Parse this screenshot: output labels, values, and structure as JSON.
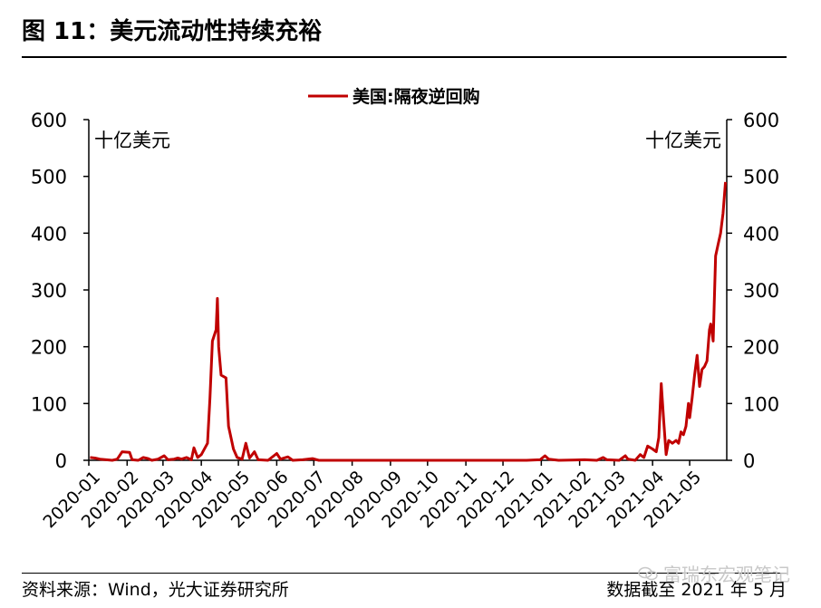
{
  "figure": {
    "title": "图 11：美元流动性持续充裕",
    "source": "资料来源：Wind，光大证券研究所",
    "cutoff": "数据截至 2021 年 5 月",
    "watermark": "富瑞东宏观笔记"
  },
  "chart_data": {
    "type": "line",
    "title": "",
    "unit_left": "十亿美元",
    "unit_right": "十亿美元",
    "ylim": [
      0,
      600
    ],
    "yticks": [
      "0",
      "100",
      "200",
      "300",
      "400",
      "500",
      "600"
    ],
    "legend": {
      "placement": "top-center"
    },
    "x_ticks": [
      "2020-01",
      "2020-02",
      "2020-03",
      "2020-04",
      "2020-05",
      "2020-06",
      "2020-07",
      "2020-08",
      "2020-09",
      "2020-10",
      "2020-11",
      "2020-12",
      "2021-01",
      "2021-02",
      "2021-03",
      "2021-04",
      "2021-05"
    ],
    "x_range": [
      "2020-01-01",
      "2021-05-31"
    ],
    "series": [
      {
        "name": "美国:隔夜逆回购",
        "color": "#c00000",
        "points": [
          [
            "2020-01-02",
            5
          ],
          [
            "2020-01-06",
            4
          ],
          [
            "2020-01-10",
            2
          ],
          [
            "2020-01-15",
            1
          ],
          [
            "2020-01-20",
            0
          ],
          [
            "2020-01-24",
            2
          ],
          [
            "2020-01-28",
            15
          ],
          [
            "2020-02-03",
            14
          ],
          [
            "2020-02-05",
            1
          ],
          [
            "2020-02-10",
            0
          ],
          [
            "2020-02-14",
            5
          ],
          [
            "2020-02-18",
            3
          ],
          [
            "2020-02-21",
            0
          ],
          [
            "2020-02-26",
            2
          ],
          [
            "2020-03-02",
            8
          ],
          [
            "2020-03-05",
            1
          ],
          [
            "2020-03-10",
            2
          ],
          [
            "2020-03-13",
            4
          ],
          [
            "2020-03-16",
            2
          ],
          [
            "2020-03-20",
            5
          ],
          [
            "2020-03-24",
            1
          ],
          [
            "2020-03-26",
            22
          ],
          [
            "2020-03-29",
            5
          ],
          [
            "2020-04-01",
            10
          ],
          [
            "2020-04-06",
            30
          ],
          [
            "2020-04-08",
            110
          ],
          [
            "2020-04-10",
            210
          ],
          [
            "2020-04-13",
            230
          ],
          [
            "2020-04-14",
            285
          ],
          [
            "2020-04-15",
            200
          ],
          [
            "2020-04-17",
            150
          ],
          [
            "2020-04-21",
            145
          ],
          [
            "2020-04-23",
            60
          ],
          [
            "2020-04-27",
            20
          ],
          [
            "2020-04-30",
            5
          ],
          [
            "2020-05-04",
            2
          ],
          [
            "2020-05-07",
            30
          ],
          [
            "2020-05-10",
            4
          ],
          [
            "2020-05-14",
            15
          ],
          [
            "2020-05-17",
            1
          ],
          [
            "2020-05-25",
            0
          ],
          [
            "2020-06-01",
            12
          ],
          [
            "2020-06-04",
            2
          ],
          [
            "2020-06-10",
            6
          ],
          [
            "2020-06-14",
            0
          ],
          [
            "2020-06-22",
            1
          ],
          [
            "2020-06-30",
            3
          ],
          [
            "2020-07-05",
            0
          ],
          [
            "2020-12-20",
            0
          ],
          [
            "2020-12-31",
            1
          ],
          [
            "2021-01-04",
            8
          ],
          [
            "2021-01-07",
            2
          ],
          [
            "2021-01-15",
            0
          ],
          [
            "2021-02-05",
            1
          ],
          [
            "2021-02-15",
            0
          ],
          [
            "2021-02-20",
            5
          ],
          [
            "2021-02-23",
            1
          ],
          [
            "2021-03-05",
            0
          ],
          [
            "2021-03-10",
            8
          ],
          [
            "2021-03-12",
            2
          ],
          [
            "2021-03-18",
            0
          ],
          [
            "2021-03-22",
            10
          ],
          [
            "2021-03-25",
            5
          ],
          [
            "2021-03-28",
            25
          ],
          [
            "2021-04-01",
            20
          ],
          [
            "2021-04-04",
            15
          ],
          [
            "2021-04-06",
            40
          ],
          [
            "2021-04-08",
            135
          ],
          [
            "2021-04-10",
            70
          ],
          [
            "2021-04-12",
            10
          ],
          [
            "2021-04-14",
            35
          ],
          [
            "2021-04-17",
            30
          ],
          [
            "2021-04-20",
            35
          ],
          [
            "2021-04-22",
            30
          ],
          [
            "2021-04-24",
            50
          ],
          [
            "2021-04-26",
            45
          ],
          [
            "2021-04-28",
            60
          ],
          [
            "2021-04-30",
            100
          ],
          [
            "2021-05-01",
            75
          ],
          [
            "2021-05-03",
            110
          ],
          [
            "2021-05-05",
            150
          ],
          [
            "2021-05-07",
            185
          ],
          [
            "2021-05-09",
            130
          ],
          [
            "2021-05-11",
            160
          ],
          [
            "2021-05-13",
            165
          ],
          [
            "2021-05-15",
            175
          ],
          [
            "2021-05-17",
            230
          ],
          [
            "2021-05-18",
            240
          ],
          [
            "2021-05-20",
            210
          ],
          [
            "2021-05-22",
            360
          ],
          [
            "2021-05-24",
            380
          ],
          [
            "2021-05-26",
            400
          ],
          [
            "2021-05-28",
            435
          ],
          [
            "2021-05-30",
            490
          ]
        ]
      }
    ]
  }
}
